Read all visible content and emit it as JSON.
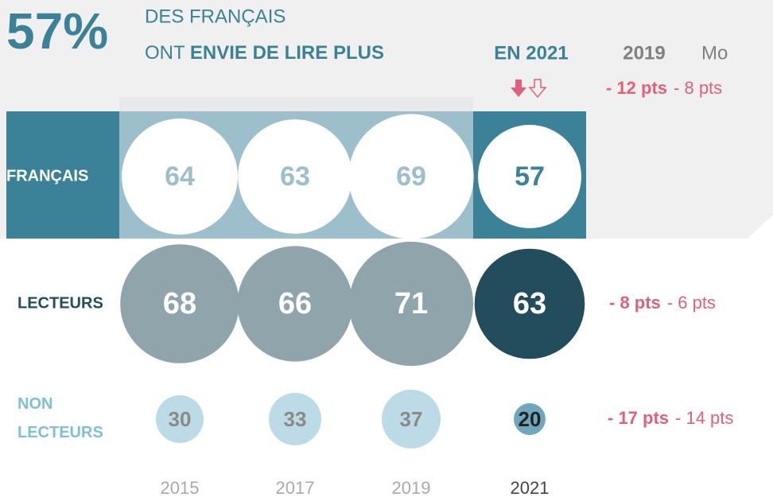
{
  "chart_data": {
    "type": "bubble",
    "headline": "57%",
    "title_line1": "DES FRANÇAIS",
    "title_line2_prefix": "ONT",
    "title_line2_bold": "ENVIE DE LIRE PLUS",
    "column_headers": [
      "EN 2021",
      "2019",
      "Mo"
    ],
    "categories": [
      "2015",
      "2017",
      "2019",
      "2021"
    ],
    "series": [
      {
        "name": "FRANÇAIS",
        "values": [
          64,
          63,
          69,
          57
        ],
        "diffs": [
          "- 12 pts",
          "- 8 pts"
        ]
      },
      {
        "name": "LECTEURS",
        "values": [
          68,
          66,
          71,
          63
        ],
        "diffs": [
          "- 8 pts",
          "- 6 pts"
        ]
      },
      {
        "name": "NON LECTEURS",
        "values": [
          30,
          33,
          37,
          20
        ],
        "diffs": [
          "- 17 pts",
          "- 14 pts"
        ]
      }
    ]
  }
}
